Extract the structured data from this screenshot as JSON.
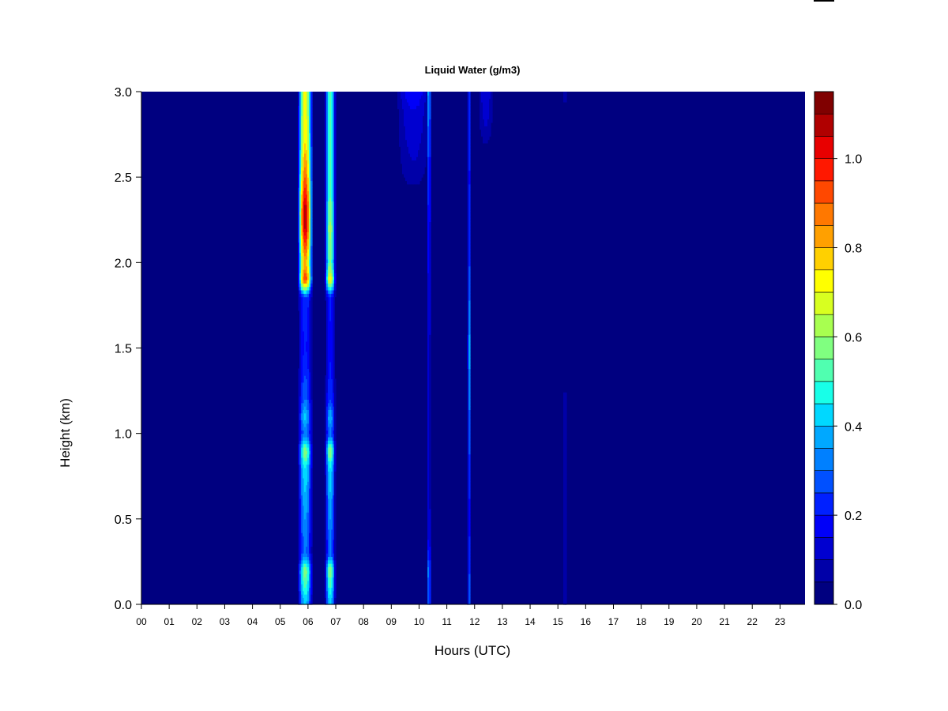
{
  "chart_data": {
    "type": "heatmap",
    "title": "Liquid Water (g/m3)",
    "xlabel": "Hours (UTC)",
    "ylabel": "Height (km)",
    "xlim": [
      0,
      23.9
    ],
    "ylim": [
      0,
      3.0
    ],
    "x_ticks": [
      {
        "value": 0,
        "label": "00"
      },
      {
        "value": 1,
        "label": "01"
      },
      {
        "value": 2,
        "label": "02"
      },
      {
        "value": 3,
        "label": "03"
      },
      {
        "value": 4,
        "label": "04"
      },
      {
        "value": 5,
        "label": "05"
      },
      {
        "value": 6,
        "label": "06"
      },
      {
        "value": 7,
        "label": "07"
      },
      {
        "value": 8,
        "label": "08"
      },
      {
        "value": 9,
        "label": "09"
      },
      {
        "value": 10,
        "label": "10"
      },
      {
        "value": 11,
        "label": "11"
      },
      {
        "value": 12,
        "label": "12"
      },
      {
        "value": 13,
        "label": "13"
      },
      {
        "value": 14,
        "label": "14"
      },
      {
        "value": 15,
        "label": "15"
      },
      {
        "value": 16,
        "label": "16"
      },
      {
        "value": 17,
        "label": "17"
      },
      {
        "value": 18,
        "label": "18"
      },
      {
        "value": 19,
        "label": "19"
      },
      {
        "value": 20,
        "label": "20"
      },
      {
        "value": 21,
        "label": "21"
      },
      {
        "value": 22,
        "label": "22"
      },
      {
        "value": 23,
        "label": "23"
      }
    ],
    "y_ticks": [
      {
        "value": 0.0,
        "label": "0.0"
      },
      {
        "value": 0.5,
        "label": "0.5"
      },
      {
        "value": 1.0,
        "label": "1.0"
      },
      {
        "value": 1.5,
        "label": "1.5"
      },
      {
        "value": 2.0,
        "label": "2.0"
      },
      {
        "value": 2.5,
        "label": "2.5"
      },
      {
        "value": 3.0,
        "label": "3.0"
      }
    ],
    "colorbar": {
      "levels": [
        0.0,
        0.05,
        0.1,
        0.15,
        0.2,
        0.25,
        0.3,
        0.35,
        0.4,
        0.45,
        0.5,
        0.55,
        0.6,
        0.65,
        0.7,
        0.75,
        0.8,
        0.85,
        0.9,
        0.95,
        1.0,
        1.05,
        1.1,
        1.15
      ],
      "colors": [
        "#000080",
        "#0000a8",
        "#0000d0",
        "#0000f8",
        "#0020ff",
        "#0050ff",
        "#0080ff",
        "#00a8ff",
        "#00d8ff",
        "#18ffe8",
        "#50ffb0",
        "#80ff80",
        "#a8ff50",
        "#d8ff20",
        "#ffff00",
        "#ffd000",
        "#ffa000",
        "#ff7800",
        "#ff4800",
        "#ff1800",
        "#e80000",
        "#b00000",
        "#800000"
      ],
      "ticks": [
        {
          "value": 0.0,
          "label": "0.0"
        },
        {
          "value": 0.2,
          "label": "0.2"
        },
        {
          "value": 0.4,
          "label": "0.4"
        },
        {
          "value": 0.6,
          "label": "0.6"
        },
        {
          "value": 0.8,
          "label": "0.8"
        },
        {
          "value": 1.0,
          "label": "1.0"
        }
      ]
    },
    "background_value": 0.0,
    "cloud_events": [
      {
        "hour_center": 5.9,
        "hour_width": 0.55,
        "profile": [
          [
            0.0,
            0.4
          ],
          [
            0.2,
            0.6
          ],
          [
            0.3,
            0.3
          ],
          [
            0.5,
            0.35
          ],
          [
            0.8,
            0.45
          ],
          [
            0.9,
            0.6
          ],
          [
            1.0,
            0.3
          ],
          [
            1.1,
            0.42
          ],
          [
            1.2,
            0.3
          ],
          [
            1.5,
            0.2
          ],
          [
            1.8,
            0.25
          ],
          [
            1.9,
            0.95
          ],
          [
            2.0,
            0.8
          ],
          [
            2.2,
            1.05
          ],
          [
            2.3,
            1.08
          ],
          [
            2.5,
            0.9
          ],
          [
            2.7,
            0.75
          ],
          [
            3.0,
            0.7
          ]
        ]
      },
      {
        "hour_center": 6.8,
        "hour_width": 0.4,
        "profile": [
          [
            0.0,
            0.4
          ],
          [
            0.2,
            0.6
          ],
          [
            0.3,
            0.3
          ],
          [
            0.5,
            0.35
          ],
          [
            0.8,
            0.45
          ],
          [
            0.9,
            0.6
          ],
          [
            1.0,
            0.3
          ],
          [
            1.1,
            0.4
          ],
          [
            1.2,
            0.25
          ],
          [
            1.5,
            0.18
          ],
          [
            1.8,
            0.22
          ],
          [
            1.9,
            0.75
          ],
          [
            2.0,
            0.55
          ],
          [
            2.2,
            0.62
          ],
          [
            2.5,
            0.5
          ],
          [
            3.0,
            0.55
          ]
        ]
      },
      {
        "hour_center": 9.8,
        "hour_width": 1.4,
        "profile": [
          [
            0.0,
            0.0
          ],
          [
            2.3,
            0.0
          ],
          [
            2.6,
            0.1
          ],
          [
            2.9,
            0.15
          ],
          [
            3.0,
            0.2
          ]
        ]
      },
      {
        "hour_center": 10.35,
        "hour_width": 0.14,
        "profile": [
          [
            0.0,
            0.3
          ],
          [
            0.2,
            0.35
          ],
          [
            0.4,
            0.15
          ],
          [
            1.0,
            0.12
          ],
          [
            1.8,
            0.15
          ],
          [
            2.5,
            0.25
          ],
          [
            3.0,
            0.4
          ]
        ]
      },
      {
        "hour_center": 11.8,
        "hour_width": 0.12,
        "profile": [
          [
            0.0,
            0.3
          ],
          [
            0.2,
            0.25
          ],
          [
            0.5,
            0.18
          ],
          [
            1.0,
            0.28
          ],
          [
            1.5,
            0.38
          ],
          [
            2.0,
            0.25
          ],
          [
            2.5,
            0.2
          ],
          [
            3.0,
            0.25
          ]
        ]
      },
      {
        "hour_center": 12.4,
        "hour_width": 0.6,
        "profile": [
          [
            0.0,
            0.0
          ],
          [
            2.6,
            0.0
          ],
          [
            2.8,
            0.1
          ],
          [
            3.0,
            0.15
          ]
        ]
      },
      {
        "hour_center": 15.25,
        "hour_width": 0.2,
        "profile": [
          [
            0.0,
            0.08
          ],
          [
            1.2,
            0.08
          ],
          [
            1.3,
            0.0
          ],
          [
            2.8,
            0.0
          ],
          [
            3.0,
            0.08
          ]
        ]
      }
    ]
  }
}
